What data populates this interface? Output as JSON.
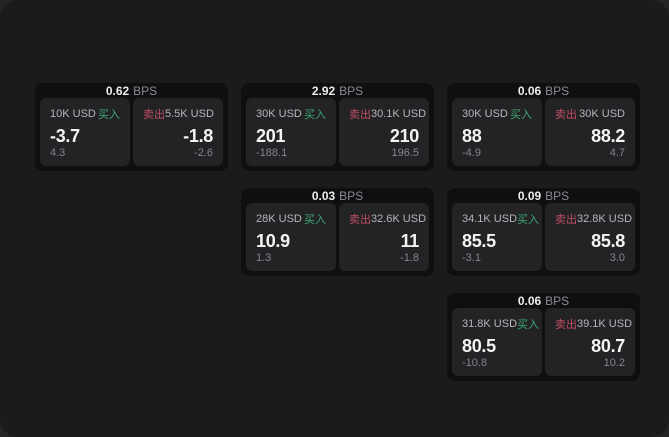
{
  "labels": {
    "unit": "BPS",
    "buy": "买入",
    "sell": "卖出"
  },
  "colors": {
    "backdrop": "#242427",
    "window_bg": "#1b1b1d",
    "card_bg": "#0f0f11",
    "panel_bg": "#232326",
    "buy_accent": "#3ea873",
    "sell_accent": "#c04e63",
    "price_text": "#f4f4f5",
    "muted_text": "#85858b"
  },
  "cards": [
    {
      "bps": "0.62",
      "buy": {
        "size": "10K USD",
        "price": "-3.7",
        "delta": "4.3"
      },
      "sell": {
        "size": "5.5K USD",
        "price": "-1.8",
        "delta": "-2.6"
      }
    },
    {
      "bps": "2.92",
      "buy": {
        "size": "30K USD",
        "price": "201",
        "delta": "-188.1"
      },
      "sell": {
        "size": "30.1K USD",
        "price": "210",
        "delta": "196.5"
      }
    },
    {
      "bps": "0.06",
      "buy": {
        "size": "30K USD",
        "price": "88",
        "delta": "-4.9"
      },
      "sell": {
        "size": "30K USD",
        "price": "88.2",
        "delta": "4.7"
      }
    },
    {
      "bps": "0.03",
      "buy": {
        "size": "28K USD",
        "price": "10.9",
        "delta": "1.3"
      },
      "sell": {
        "size": "32.6K USD",
        "price": "11",
        "delta": "-1.8"
      }
    },
    {
      "bps": "0.09",
      "buy": {
        "size": "34.1K USD",
        "price": "85.5",
        "delta": "-3.1"
      },
      "sell": {
        "size": "32.8K USD",
        "price": "85.8",
        "delta": "3.0"
      }
    },
    {
      "bps": "0.06",
      "buy": {
        "size": "31.8K USD",
        "price": "80.5",
        "delta": "-10.8"
      },
      "sell": {
        "size": "39.1K USD",
        "price": "80.7",
        "delta": "10.2"
      }
    }
  ]
}
